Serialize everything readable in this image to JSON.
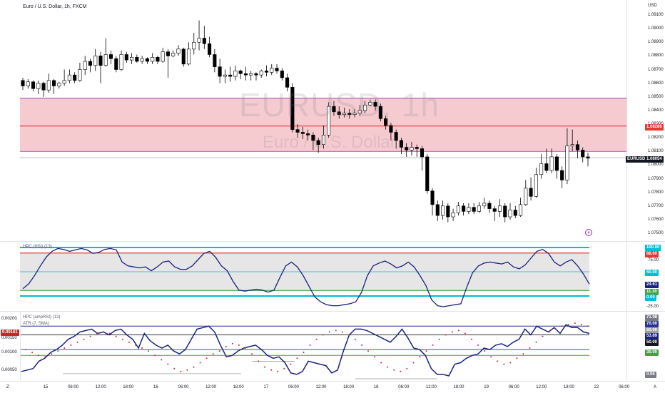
{
  "header": {
    "symbol_title": "Euro / U.S. Dollar, 1h, FXCM",
    "currency": "USD",
    "lightning_icon": "lightning-icon"
  },
  "watermark": {
    "ticker": "EURUSD, 1h",
    "description": "Euro / U.S. Dollar"
  },
  "price_axis": {
    "ticks": [
      "1.09100",
      "1.09000",
      "1.08900",
      "1.08800",
      "1.08700",
      "1.08600",
      "1.08500",
      "1.08400",
      "1.08300",
      "1.08200",
      "1.08100",
      "1.08000",
      "1.07900",
      "1.07800",
      "1.07700",
      "1.07600",
      "1.07500"
    ],
    "level_label": "1.08286",
    "last_price_label": "1.08054",
    "symbol_label": "EURUSD"
  },
  "hpc_panel": {
    "title": "HPC (HSI) (13)",
    "ticks": [
      "75.00",
      "-25.00"
    ],
    "labels": {
      "top": "100.00",
      "red": "88.60",
      "mid": "50.00",
      "value": "24.61",
      "green": "11.30",
      "bottom": "0.00"
    }
  },
  "atr_panel": {
    "title1": "HPC (ampRSI) (13)",
    "title2": "ATR (7, SMA)",
    "left_ticks": [
      "0.00200",
      "0.00150",
      "0.00100",
      "0.00050"
    ],
    "left_value": "0.00161",
    "labels": {
      "top": "71.98",
      "blue": "70.00",
      "mid": "60.00",
      "value": "53.89",
      "dark": "50.00",
      "green": "30.00",
      "bottom": "0.06"
    }
  },
  "time_axis": {
    "left_icon": "Z",
    "right_icon": "A",
    "labels": [
      "15",
      "06:00",
      "12:00",
      "18:00",
      "16",
      "06:00",
      "12:00",
      "18:00",
      "17",
      "06:00",
      "12:00",
      "18:00",
      "18",
      "06:00",
      "12:00",
      "18:00",
      "19",
      "06:00",
      "12:00",
      "18:00",
      "22",
      "06:00"
    ]
  },
  "colors": {
    "bull_candle": "#ffffff",
    "bear_candle": "#000000",
    "zone_fill": "#f4c2c8",
    "zone_border": "#9c27b0",
    "level_line": "#e53935",
    "hsi_line": "#1a237e",
    "top_band": "#00bcd4",
    "green_band": "#43a047",
    "atr_line": "#1a237e",
    "dots": "#c62828"
  }
}
